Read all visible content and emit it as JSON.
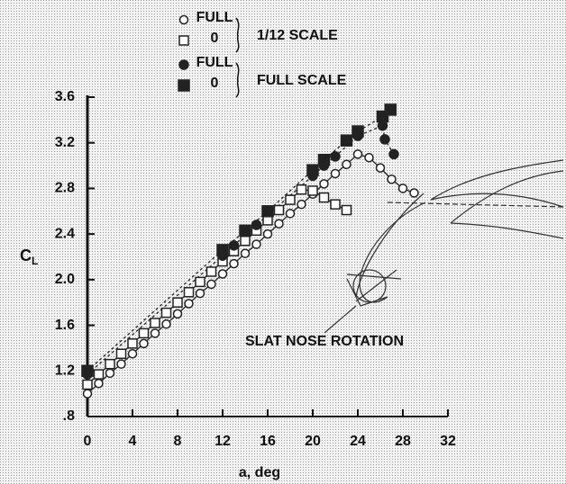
{
  "chart_data": {
    "type": "scatter",
    "xlabel": "a, deg",
    "ylabel": {
      "main": "C",
      "sub": "L"
    },
    "annotation": "SLAT NOSE ROTATION",
    "legend_groups": [
      "1/12 SCALE",
      "FULL SCALE"
    ],
    "xlim": [
      0,
      32
    ],
    "xticks": [
      0,
      4,
      8,
      12,
      16,
      20,
      24,
      28,
      32
    ],
    "ylim": [
      0.8,
      3.6
    ],
    "yticks": [
      {
        "value": 0.8,
        "label": ".8"
      },
      1.2,
      1.6,
      {
        "value": 2.0,
        "label": "2.0"
      },
      2.4,
      2.8,
      3.2,
      3.6
    ],
    "series": [
      {
        "name": "FULL",
        "group": 0,
        "marker": "circle",
        "filled": false,
        "color": "#222",
        "x": [
          0,
          1,
          2,
          3,
          4,
          5,
          6,
          7,
          8,
          9,
          10,
          11,
          12,
          13,
          14,
          15,
          16,
          17,
          18,
          19,
          20,
          21,
          22,
          23,
          24,
          25,
          26,
          27,
          28,
          29
        ],
        "values": [
          1.0,
          1.09,
          1.18,
          1.26,
          1.35,
          1.44,
          1.53,
          1.61,
          1.7,
          1.79,
          1.88,
          1.96,
          2.05,
          2.14,
          2.23,
          2.31,
          2.4,
          2.49,
          2.58,
          2.66,
          2.75,
          2.84,
          2.93,
          3.01,
          3.1,
          3.07,
          2.98,
          2.88,
          2.8,
          2.76
        ]
      },
      {
        "name": "0",
        "group": 0,
        "marker": "square",
        "filled": false,
        "color": "#222",
        "x": [
          0,
          1,
          2,
          3,
          4,
          5,
          6,
          7,
          8,
          9,
          10,
          11,
          12,
          13,
          14,
          15,
          16,
          17,
          18,
          19,
          20,
          21,
          22,
          23
        ],
        "values": [
          1.08,
          1.17,
          1.26,
          1.35,
          1.44,
          1.53,
          1.62,
          1.71,
          1.8,
          1.89,
          1.98,
          2.07,
          2.16,
          2.25,
          2.34,
          2.43,
          2.52,
          2.61,
          2.7,
          2.79,
          2.78,
          2.72,
          2.66,
          2.61
        ]
      },
      {
        "name": "FULL",
        "group": 1,
        "marker": "circle",
        "filled": true,
        "color": "#222",
        "x": [
          0,
          12,
          13,
          15,
          20,
          21,
          22,
          24,
          26.2,
          26.4,
          27.2
        ],
        "values": [
          1.17,
          2.21,
          2.3,
          2.48,
          2.91,
          3.0,
          3.08,
          3.26,
          3.35,
          3.23,
          3.1
        ]
      },
      {
        "name": "0",
        "group": 1,
        "marker": "square",
        "filled": true,
        "color": "#222",
        "x": [
          0,
          12,
          14,
          16,
          20,
          21,
          23,
          24,
          26.2,
          26.9
        ],
        "values": [
          1.2,
          2.26,
          2.43,
          2.6,
          2.96,
          3.05,
          3.22,
          3.3,
          3.43,
          3.49
        ]
      }
    ]
  }
}
